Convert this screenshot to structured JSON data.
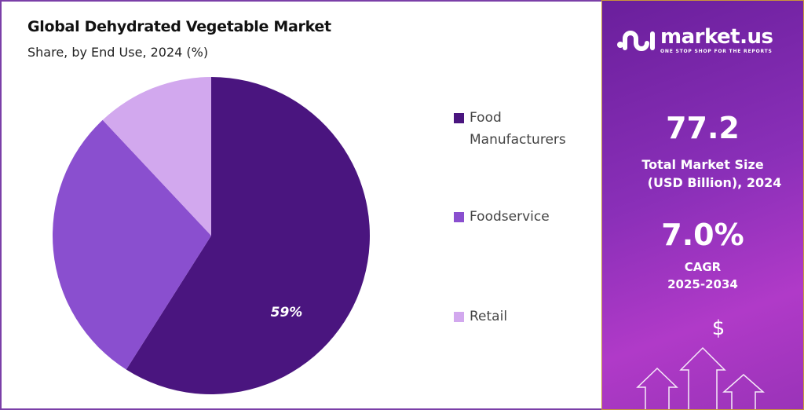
{
  "chart_data": {
    "type": "pie",
    "title": "Global Dehydrated Vegetable Market",
    "subtitle": "Share, by End Use, 2024 (%)",
    "slices": [
      {
        "label": "Food Manufacturers",
        "value": 59,
        "color": "#4a157f",
        "data_label": "59%"
      },
      {
        "label": "Foodservice",
        "value": 29,
        "color": "#8a4fcf",
        "data_label": ""
      },
      {
        "label": "Retail",
        "value": 12,
        "color": "#d2a8ee",
        "data_label": ""
      }
    ],
    "legend_position": "right"
  },
  "legend": {
    "items": [
      {
        "line1": "Food",
        "line2": "Manufacturers"
      },
      {
        "line1": "Foodservice",
        "line2": ""
      },
      {
        "line1": "Retail",
        "line2": ""
      }
    ]
  },
  "sidebar": {
    "brand": "market.us",
    "tagline": "ONE STOP SHOP FOR THE REPORTS",
    "market_size_value": "77.2",
    "market_size_label1": "Total Market Size",
    "market_size_label2": "(USD Billion), 2024",
    "cagr_value": "7.0%",
    "cagr_label1": "CAGR",
    "cagr_label2": "2025-2034",
    "currency_symbol": "$"
  }
}
